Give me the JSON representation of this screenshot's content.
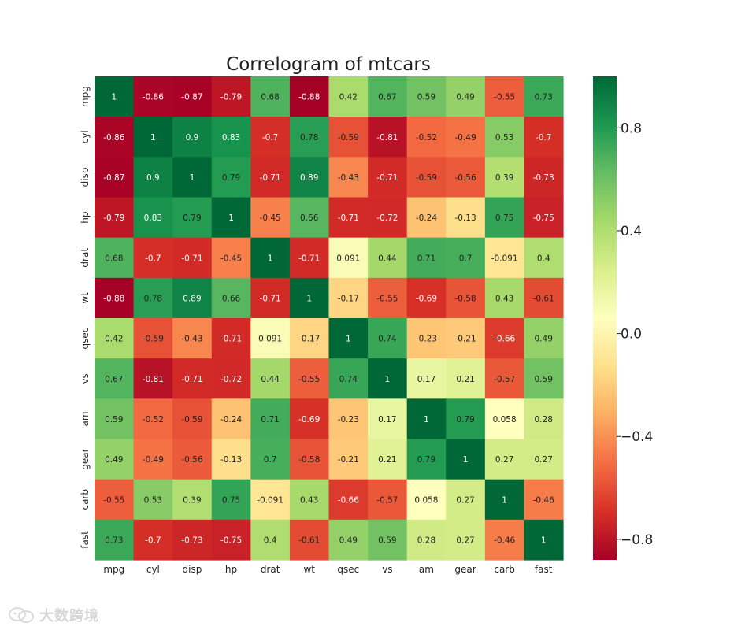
{
  "chart_data": {
    "type": "heatmap",
    "title": "Correlogram of mtcars",
    "variables": [
      "mpg",
      "cyl",
      "disp",
      "hp",
      "drat",
      "wt",
      "qsec",
      "vs",
      "am",
      "gear",
      "carb",
      "fast"
    ],
    "matrix": [
      [
        1,
        -0.86,
        -0.87,
        -0.79,
        0.68,
        -0.88,
        0.42,
        0.67,
        0.59,
        0.49,
        -0.55,
        0.73
      ],
      [
        -0.86,
        1,
        0.9,
        0.83,
        -0.7,
        0.78,
        -0.59,
        -0.81,
        -0.52,
        -0.49,
        0.53,
        -0.7
      ],
      [
        -0.87,
        0.9,
        1,
        0.79,
        -0.71,
        0.89,
        -0.43,
        -0.71,
        -0.59,
        -0.56,
        0.39,
        -0.73
      ],
      [
        -0.79,
        0.83,
        0.79,
        1,
        -0.45,
        0.66,
        -0.71,
        -0.72,
        -0.24,
        -0.13,
        0.75,
        -0.75
      ],
      [
        0.68,
        -0.7,
        -0.71,
        -0.45,
        1,
        -0.71,
        0.091,
        0.44,
        0.71,
        0.7,
        -0.091,
        0.4
      ],
      [
        -0.88,
        0.78,
        0.89,
        0.66,
        -0.71,
        1,
        -0.17,
        -0.55,
        -0.69,
        -0.58,
        0.43,
        -0.61
      ],
      [
        0.42,
        -0.59,
        -0.43,
        -0.71,
        0.091,
        -0.17,
        1,
        0.74,
        -0.23,
        -0.21,
        -0.66,
        0.49
      ],
      [
        0.67,
        -0.81,
        -0.71,
        -0.72,
        0.44,
        -0.55,
        0.74,
        1,
        0.17,
        0.21,
        -0.57,
        0.59
      ],
      [
        0.59,
        -0.52,
        -0.59,
        -0.24,
        0.71,
        -0.69,
        -0.23,
        0.17,
        1,
        0.79,
        0.058,
        0.28
      ],
      [
        0.49,
        -0.49,
        -0.56,
        -0.13,
        0.7,
        -0.58,
        -0.21,
        0.21,
        0.79,
        1,
        0.27,
        0.27
      ],
      [
        -0.55,
        0.53,
        0.39,
        0.75,
        -0.091,
        0.43,
        -0.66,
        -0.57,
        0.058,
        0.27,
        1,
        -0.46
      ],
      [
        0.73,
        -0.7,
        -0.73,
        -0.75,
        0.4,
        -0.61,
        0.49,
        0.59,
        0.28,
        0.27,
        -0.46,
        1
      ]
    ],
    "colormap": "RdYlGn",
    "colorbar": {
      "range": [
        -0.88,
        1
      ],
      "ticks": [
        0.8,
        0.4,
        0.0,
        -0.4,
        -0.8
      ],
      "tick_labels": [
        "0.8",
        "0.4",
        "0.0",
        "−0.4",
        "−0.8"
      ]
    },
    "grid": false,
    "annotations": true
  },
  "watermark": {
    "text": "大数跨境"
  },
  "colors": {
    "low": "#a50026",
    "mid": "#ffffbf",
    "high": "#006837",
    "text_dark": "#222222",
    "text_light": "#ffffff"
  }
}
